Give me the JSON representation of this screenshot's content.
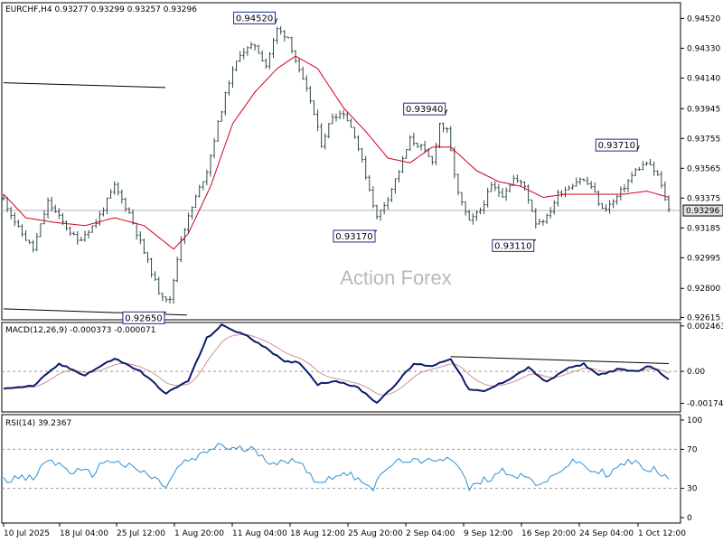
{
  "chart_data": {
    "type": "candlestick",
    "symbol_line": "EURCHF,H4  0.93277 0.93299 0.93257 0.93296",
    "watermark": "Action Forex",
    "current_price": "0.93296",
    "colors": {
      "bars": "#2e4a48",
      "ma": "#d0021b",
      "macd": "#0b1a6b",
      "signal": "#d09090",
      "rsi": "#2f8fd0",
      "grid_dash": "#9a9a9a",
      "trendline": "#000000",
      "price_box_bg": "#e0e0e0"
    },
    "price_axis": {
      "range": [
        0.926,
        0.9462
      ],
      "ticks": [
        "0.94520",
        "0.94330",
        "0.94140",
        "0.93945",
        "0.93755",
        "0.93565",
        "0.93375",
        "0.93185",
        "0.92995",
        "0.92800",
        "0.92615"
      ]
    },
    "x_axis": {
      "labels": [
        "10 Jul 2025",
        "18 Jul 04:00",
        "25 Jul 12:00",
        "1 Aug 20:00",
        "11 Aug 04:00",
        "18 Aug 12:00",
        "25 Aug 20:00",
        "2 Sep 04:00",
        "9 Sep 12:00",
        "16 Sep 20:00",
        "24 Sep 04:00",
        "1 Oct 12:00"
      ]
    },
    "anchors": [
      [
        0,
        0.9337
      ],
      [
        4,
        0.9318
      ],
      [
        8,
        0.9305
      ],
      [
        12,
        0.9335
      ],
      [
        16,
        0.9322
      ],
      [
        20,
        0.931
      ],
      [
        25,
        0.9322
      ],
      [
        30,
        0.9345
      ],
      [
        34,
        0.9328
      ],
      [
        38,
        0.9303
      ],
      [
        42,
        0.9278
      ],
      [
        45,
        0.9272
      ],
      [
        48,
        0.9312
      ],
      [
        52,
        0.9338
      ],
      [
        55,
        0.9355
      ],
      [
        58,
        0.9385
      ],
      [
        61,
        0.9412
      ],
      [
        64,
        0.943
      ],
      [
        68,
        0.9435
      ],
      [
        71,
        0.9422
      ],
      [
        74,
        0.9445
      ],
      [
        77,
        0.944
      ],
      [
        80,
        0.9418
      ],
      [
        83,
        0.94
      ],
      [
        86,
        0.9372
      ],
      [
        89,
        0.939
      ],
      [
        92,
        0.9392
      ],
      [
        95,
        0.9378
      ],
      [
        98,
        0.9352
      ],
      [
        101,
        0.9325
      ],
      [
        104,
        0.9338
      ],
      [
        107,
        0.9355
      ],
      [
        110,
        0.9375
      ],
      [
        113,
        0.937
      ],
      [
        116,
        0.936
      ],
      [
        118,
        0.9385
      ],
      [
        120,
        0.938
      ],
      [
        123,
        0.934
      ],
      [
        126,
        0.9322
      ],
      [
        129,
        0.933
      ],
      [
        132,
        0.9345
      ],
      [
        135,
        0.934
      ],
      [
        138,
        0.935
      ],
      [
        141,
        0.9345
      ],
      [
        144,
        0.9322
      ],
      [
        147,
        0.9325
      ],
      [
        150,
        0.934
      ],
      [
        153,
        0.9345
      ],
      [
        156,
        0.935
      ],
      [
        159,
        0.9345
      ],
      [
        162,
        0.933
      ],
      [
        165,
        0.9335
      ],
      [
        168,
        0.9345
      ],
      [
        171,
        0.9355
      ],
      [
        174,
        0.936
      ],
      [
        177,
        0.9352
      ],
      [
        180,
        0.933
      ]
    ],
    "ma_anchors": [
      [
        0,
        0.934
      ],
      [
        6,
        0.9325
      ],
      [
        14,
        0.9322
      ],
      [
        22,
        0.932
      ],
      [
        30,
        0.9325
      ],
      [
        38,
        0.932
      ],
      [
        46,
        0.9305
      ],
      [
        50,
        0.9315
      ],
      [
        56,
        0.9345
      ],
      [
        62,
        0.9385
      ],
      [
        68,
        0.9405
      ],
      [
        74,
        0.942
      ],
      [
        79,
        0.9428
      ],
      [
        85,
        0.942
      ],
      [
        92,
        0.9395
      ],
      [
        98,
        0.938
      ],
      [
        104,
        0.9363
      ],
      [
        110,
        0.936
      ],
      [
        116,
        0.937
      ],
      [
        121,
        0.937
      ],
      [
        128,
        0.9355
      ],
      [
        134,
        0.9348
      ],
      [
        140,
        0.9345
      ],
      [
        146,
        0.9338
      ],
      [
        152,
        0.934
      ],
      [
        160,
        0.934
      ],
      [
        168,
        0.934
      ],
      [
        174,
        0.9342
      ],
      [
        180,
        0.9338
      ]
    ],
    "macd": {
      "title": "MACD(12,26,9) -0.000373 -0.000071",
      "range": [
        -0.0022,
        0.00265
      ],
      "ticks": [
        "0.002463",
        "0.00",
        "-0.00174"
      ],
      "anchors": [
        [
          0,
          -0.0009
        ],
        [
          8,
          -0.0008
        ],
        [
          15,
          0.0004
        ],
        [
          22,
          -0.0002
        ],
        [
          30,
          0.0007
        ],
        [
          37,
          0.0
        ],
        [
          44,
          -0.0012
        ],
        [
          50,
          -0.0005
        ],
        [
          55,
          0.0018
        ],
        [
          59,
          0.0025
        ],
        [
          65,
          0.002
        ],
        [
          71,
          0.0013
        ],
        [
          76,
          0.0005
        ],
        [
          80,
          0.0005
        ],
        [
          85,
          -0.0007
        ],
        [
          90,
          -0.0005
        ],
        [
          96,
          -0.0009
        ],
        [
          101,
          -0.0017
        ],
        [
          106,
          -0.0007
        ],
        [
          111,
          0.0004
        ],
        [
          116,
          0.0003
        ],
        [
          121,
          0.0007
        ],
        [
          126,
          -0.001
        ],
        [
          130,
          -0.0011
        ],
        [
          136,
          -0.0005
        ],
        [
          142,
          0.0002
        ],
        [
          147,
          -0.0006
        ],
        [
          152,
          0.0001
        ],
        [
          157,
          0.0004
        ],
        [
          161,
          -0.0002
        ],
        [
          166,
          0.0001
        ],
        [
          171,
          0.0
        ],
        [
          175,
          0.0003
        ],
        [
          180,
          -0.0004
        ]
      ]
    },
    "rsi": {
      "title": "RSI(14) 39.2367",
      "range": [
        0,
        100
      ],
      "ticks": [
        "100",
        "70",
        "30",
        "0"
      ],
      "anchors": [
        [
          0,
          40
        ],
        [
          8,
          40
        ],
        [
          12,
          60
        ],
        [
          18,
          48
        ],
        [
          24,
          45
        ],
        [
          28,
          60
        ],
        [
          34,
          52
        ],
        [
          38,
          46
        ],
        [
          44,
          32
        ],
        [
          48,
          55
        ],
        [
          53,
          62
        ],
        [
          58,
          75
        ],
        [
          62,
          70
        ],
        [
          68,
          70
        ],
        [
          72,
          58
        ],
        [
          76,
          55
        ],
        [
          80,
          60
        ],
        [
          85,
          34
        ],
        [
          90,
          45
        ],
        [
          96,
          42
        ],
        [
          100,
          30
        ],
        [
          104,
          52
        ],
        [
          109,
          60
        ],
        [
          113,
          55
        ],
        [
          118,
          62
        ],
        [
          122,
          60
        ],
        [
          126,
          30
        ],
        [
          130,
          38
        ],
        [
          135,
          48
        ],
        [
          141,
          42
        ],
        [
          146,
          32
        ],
        [
          150,
          48
        ],
        [
          155,
          58
        ],
        [
          159,
          48
        ],
        [
          164,
          45
        ],
        [
          169,
          58
        ],
        [
          173,
          52
        ],
        [
          177,
          48
        ],
        [
          180,
          38
        ]
      ]
    },
    "callouts": [
      {
        "label": "0.94520",
        "value": 0.9452,
        "at": 74
      },
      {
        "label": "0.93940",
        "value": 0.9394,
        "at": 120
      },
      {
        "label": "0.93710",
        "value": 0.9371,
        "at": 172
      },
      {
        "label": "0.93170",
        "value": 0.9317,
        "at": 101
      },
      {
        "label": "0.93110",
        "value": 0.9311,
        "at": 144
      },
      {
        "label": "0.92650",
        "value": 0.9265,
        "at": 44
      }
    ],
    "trendlines": {
      "upper": [
        [
          0.9411,
          0.9408
        ]
      ],
      "lower": [
        [
          0.9267,
          0.9263
        ]
      ]
    }
  }
}
